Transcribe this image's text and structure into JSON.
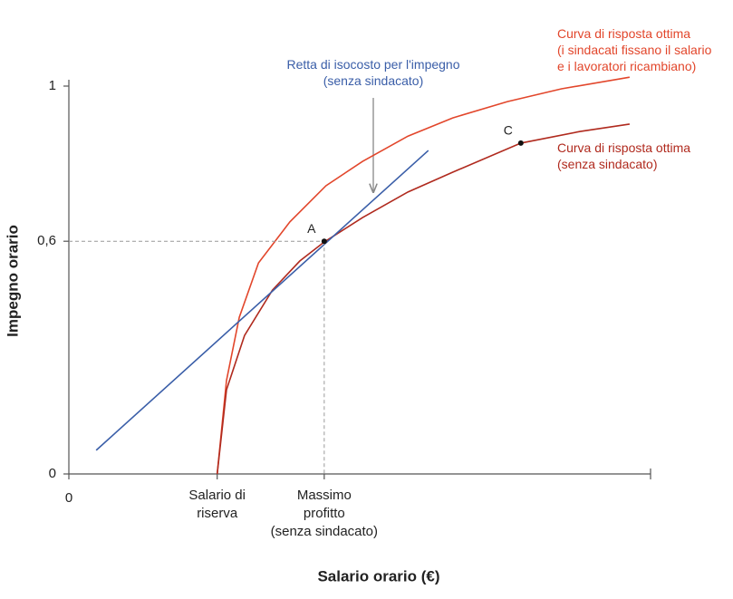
{
  "chart_data": {
    "type": "line",
    "xlabel": "Salario orario (€)",
    "ylabel": "Impegno orario",
    "xlim": [
      0,
      100
    ],
    "ylim": [
      0,
      1
    ],
    "xticks": [
      0,
      {
        "value": 25.5,
        "label": [
          "Salario di",
          "riserva"
        ]
      },
      {
        "value": 43.9,
        "label": [
          "Massimo",
          "profitto",
          "(senza sindacato)"
        ]
      }
    ],
    "yticks": [
      0,
      {
        "value": 0.6,
        "label": "0,6"
      },
      1
    ],
    "series": [
      {
        "label": [
          "Curva di risposta ottima",
          "(i sindacati fissano il salario",
          "e i lavoratori ricambiano)"
        ],
        "color": "#e2462b",
        "x": [
          25.5,
          27.1,
          29.3,
          32.6,
          38.0,
          44.2,
          50.5,
          58.3,
          66.0,
          75.4,
          84.7,
          96.4
        ],
        "values": [
          0,
          0.241,
          0.404,
          0.544,
          0.65,
          0.743,
          0.806,
          0.871,
          0.918,
          0.96,
          0.993,
          1.023
        ]
      },
      {
        "label": [
          "Curva di risposta ottima",
          "(senza sindacato)"
        ],
        "color": "#b02a1e",
        "x": [
          25.5,
          27.1,
          30.2,
          35.0,
          39.7,
          43.9,
          50.5,
          58.3,
          66.0,
          77.7,
          87.9,
          96.4
        ],
        "values": [
          0,
          0.217,
          0.357,
          0.474,
          0.549,
          0.598,
          0.661,
          0.727,
          0.778,
          0.853,
          0.883,
          0.902
        ]
      },
      {
        "label": [
          "Retta di isocosto per l'impegno",
          "(senza sindacato)"
        ],
        "color": "#3a5ea8",
        "x": [
          4.7,
          61.8
        ],
        "values": [
          0.061,
          0.834
        ]
      }
    ],
    "points": [
      {
        "label": "A",
        "x": 43.9,
        "y": 0.6
      },
      {
        "label": "C",
        "x": 77.7,
        "y": 0.853
      }
    ]
  }
}
